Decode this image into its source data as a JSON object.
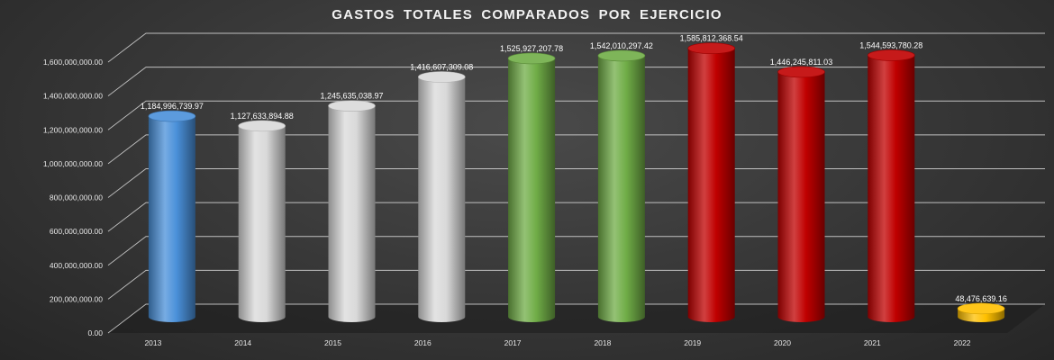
{
  "chart_data": {
    "type": "bar",
    "title": "GASTOS  TOTALES  COMPARADOS  POR  EJERCICIO",
    "xlabel": "",
    "ylabel": "",
    "ylim": [
      0,
      1600000000
    ],
    "y_ticks": [
      "0.00",
      "200,000,000.00",
      "400,000,000.00",
      "600,000,000.00",
      "800,000,000.00",
      "1,000,000,000.00",
      "1,200,000,000.00",
      "1,400,000,000.00",
      "1,600,000,000.00"
    ],
    "y_tick_values": [
      0,
      200000000,
      400000000,
      600000000,
      800000000,
      1000000000,
      1200000000,
      1400000000,
      1600000000
    ],
    "grid": true,
    "legend": "none",
    "style": "3d-cylinder",
    "categories": [
      "2013",
      "2014",
      "2015",
      "2016",
      "2017",
      "2018",
      "2019",
      "2020",
      "2021",
      "2022"
    ],
    "values": [
      1184996739.97,
      1127633894.88,
      1245635038.97,
      1416607309.08,
      1525927207.78,
      1542010297.42,
      1585812368.54,
      1446245811.03,
      1544593780.28,
      48476639.16
    ],
    "data_labels": [
      "1,184,996,739.97",
      "1,127,633,894.88",
      "1,245,635,038.97",
      "1,416,607,309.08",
      "1,525,927,207.78",
      "1,542,010,297.42",
      "1,585,812,368.54",
      "1,446,245,811.03",
      "1,544,593,780.28",
      "48,476,639.16"
    ],
    "bar_colors": [
      "#4a90d9",
      "#d9d9d9",
      "#d9d9d9",
      "#d9d9d9",
      "#70ad47",
      "#70ad47",
      "#c00000",
      "#c00000",
      "#c00000",
      "#ffc000"
    ]
  }
}
